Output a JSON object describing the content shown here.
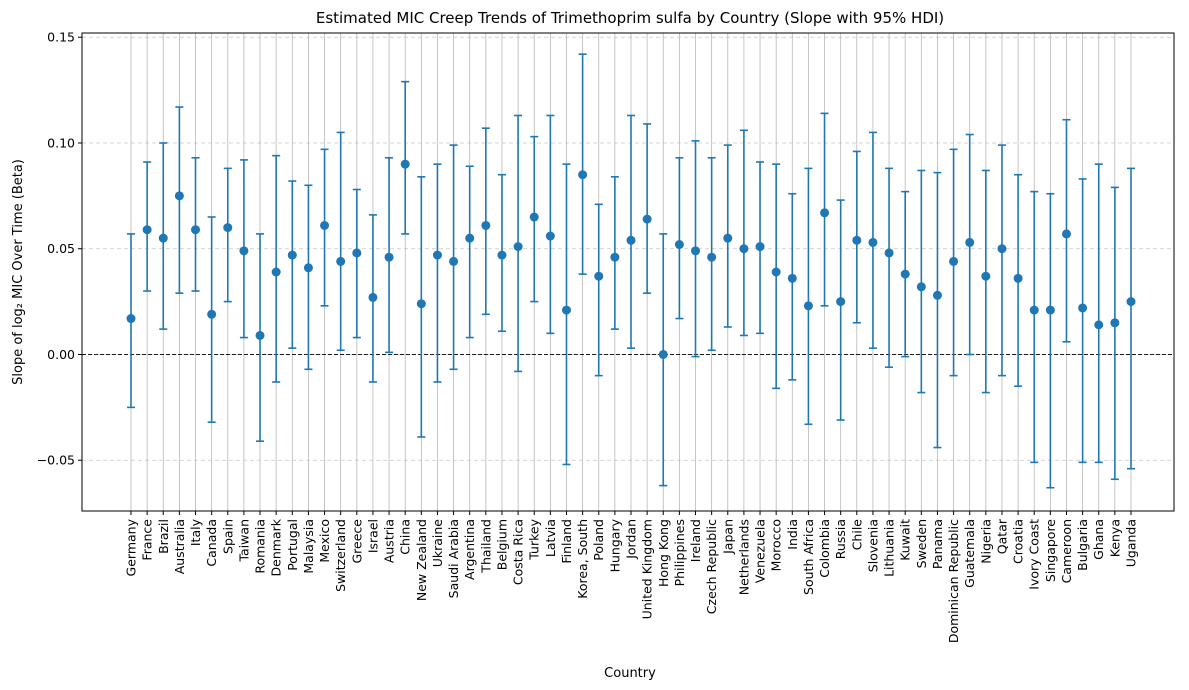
{
  "chart_data": {
    "type": "scatter",
    "title": "Estimated MIC Creep Trends of Trimethoprim sulfa by Country (Slope with 95% HDI)",
    "xlabel": "Country",
    "ylabel": "Slope of log₂ MIC Over Time (Beta)",
    "ylim": [
      -0.074,
      0.152
    ],
    "yticks": [
      -0.05,
      0.0,
      0.05,
      0.1,
      0.15
    ],
    "ytick_labels": [
      "−0.05",
      "0.00",
      "0.05",
      "0.10",
      "0.15"
    ],
    "grid": true,
    "reference_line": 0.0,
    "colors": {
      "series": "#1f77b4",
      "grid": "#b0b0b0",
      "reference": "#000000"
    },
    "points": [
      {
        "x": "Germany",
        "y": 0.017,
        "low": -0.025,
        "high": 0.057
      },
      {
        "x": "France",
        "y": 0.059,
        "low": 0.03,
        "high": 0.091
      },
      {
        "x": "Brazil",
        "y": 0.055,
        "low": 0.012,
        "high": 0.1
      },
      {
        "x": "Australia",
        "y": 0.075,
        "low": 0.029,
        "high": 0.117
      },
      {
        "x": "Italy",
        "y": 0.059,
        "low": 0.03,
        "high": 0.093
      },
      {
        "x": "Canada",
        "y": 0.019,
        "low": -0.032,
        "high": 0.065
      },
      {
        "x": "Spain",
        "y": 0.06,
        "low": 0.025,
        "high": 0.088
      },
      {
        "x": "Taiwan",
        "y": 0.049,
        "low": 0.008,
        "high": 0.092
      },
      {
        "x": "Romania",
        "y": 0.009,
        "low": -0.041,
        "high": 0.057
      },
      {
        "x": "Denmark",
        "y": 0.039,
        "low": -0.013,
        "high": 0.094
      },
      {
        "x": "Portugal",
        "y": 0.047,
        "low": 0.003,
        "high": 0.082
      },
      {
        "x": "Malaysia",
        "y": 0.041,
        "low": -0.007,
        "high": 0.08
      },
      {
        "x": "Mexico",
        "y": 0.061,
        "low": 0.023,
        "high": 0.097
      },
      {
        "x": "Switzerland",
        "y": 0.044,
        "low": 0.002,
        "high": 0.105
      },
      {
        "x": "Greece",
        "y": 0.048,
        "low": 0.008,
        "high": 0.078
      },
      {
        "x": "Israel",
        "y": 0.027,
        "low": -0.013,
        "high": 0.066
      },
      {
        "x": "Austria",
        "y": 0.046,
        "low": 0.001,
        "high": 0.093
      },
      {
        "x": "China",
        "y": 0.09,
        "low": 0.057,
        "high": 0.129
      },
      {
        "x": "New Zealand",
        "y": 0.024,
        "low": -0.039,
        "high": 0.084
      },
      {
        "x": "Ukraine",
        "y": 0.047,
        "low": -0.013,
        "high": 0.09
      },
      {
        "x": "Saudi Arabia",
        "y": 0.044,
        "low": -0.007,
        "high": 0.099
      },
      {
        "x": "Argentina",
        "y": 0.055,
        "low": 0.008,
        "high": 0.089
      },
      {
        "x": "Thailand",
        "y": 0.061,
        "low": 0.019,
        "high": 0.107
      },
      {
        "x": "Belgium",
        "y": 0.047,
        "low": 0.011,
        "high": 0.085
      },
      {
        "x": "Costa Rica",
        "y": 0.051,
        "low": -0.008,
        "high": 0.113
      },
      {
        "x": "Turkey",
        "y": 0.065,
        "low": 0.025,
        "high": 0.103
      },
      {
        "x": "Latvia",
        "y": 0.056,
        "low": 0.01,
        "high": 0.113
      },
      {
        "x": "Finland",
        "y": 0.021,
        "low": -0.052,
        "high": 0.09
      },
      {
        "x": "Korea, South",
        "y": 0.085,
        "low": 0.038,
        "high": 0.142
      },
      {
        "x": "Poland",
        "y": 0.037,
        "low": -0.01,
        "high": 0.071
      },
      {
        "x": "Hungary",
        "y": 0.046,
        "low": 0.012,
        "high": 0.084
      },
      {
        "x": "Jordan",
        "y": 0.054,
        "low": 0.003,
        "high": 0.113
      },
      {
        "x": "United Kingdom",
        "y": 0.064,
        "low": 0.029,
        "high": 0.109
      },
      {
        "x": "Hong Kong",
        "y": 0.0,
        "low": -0.062,
        "high": 0.057
      },
      {
        "x": "Philippines",
        "y": 0.052,
        "low": 0.017,
        "high": 0.093
      },
      {
        "x": "Ireland",
        "y": 0.049,
        "low": -0.001,
        "high": 0.101
      },
      {
        "x": "Czech Republic",
        "y": 0.046,
        "low": 0.002,
        "high": 0.093
      },
      {
        "x": "Japan",
        "y": 0.055,
        "low": 0.013,
        "high": 0.099
      },
      {
        "x": "Netherlands",
        "y": 0.05,
        "low": 0.009,
        "high": 0.106
      },
      {
        "x": "Venezuela",
        "y": 0.051,
        "low": 0.01,
        "high": 0.091
      },
      {
        "x": "Morocco",
        "y": 0.039,
        "low": -0.016,
        "high": 0.09
      },
      {
        "x": "India",
        "y": 0.036,
        "low": -0.012,
        "high": 0.076
      },
      {
        "x": "South Africa",
        "y": 0.023,
        "low": -0.033,
        "high": 0.088
      },
      {
        "x": "Colombia",
        "y": 0.067,
        "low": 0.023,
        "high": 0.114
      },
      {
        "x": "Russia",
        "y": 0.025,
        "low": -0.031,
        "high": 0.073
      },
      {
        "x": "Chile",
        "y": 0.054,
        "low": 0.015,
        "high": 0.096
      },
      {
        "x": "Slovenia",
        "y": 0.053,
        "low": 0.003,
        "high": 0.105
      },
      {
        "x": "Lithuania",
        "y": 0.048,
        "low": -0.006,
        "high": 0.088
      },
      {
        "x": "Kuwait",
        "y": 0.038,
        "low": -0.001,
        "high": 0.077
      },
      {
        "x": "Sweden",
        "y": 0.032,
        "low": -0.018,
        "high": 0.087
      },
      {
        "x": "Panama",
        "y": 0.028,
        "low": -0.044,
        "high": 0.086
      },
      {
        "x": "Dominican Republic",
        "y": 0.044,
        "low": -0.01,
        "high": 0.097
      },
      {
        "x": "Guatemala",
        "y": 0.053,
        "low": 0.0,
        "high": 0.104
      },
      {
        "x": "Nigeria",
        "y": 0.037,
        "low": -0.018,
        "high": 0.087
      },
      {
        "x": "Qatar",
        "y": 0.05,
        "low": -0.01,
        "high": 0.099
      },
      {
        "x": "Croatia",
        "y": 0.036,
        "low": -0.015,
        "high": 0.085
      },
      {
        "x": "Ivory Coast",
        "y": 0.021,
        "low": -0.051,
        "high": 0.077
      },
      {
        "x": "Singapore",
        "y": 0.021,
        "low": -0.063,
        "high": 0.076
      },
      {
        "x": "Cameroon",
        "y": 0.057,
        "low": 0.006,
        "high": 0.111
      },
      {
        "x": "Bulgaria",
        "y": 0.022,
        "low": -0.051,
        "high": 0.083
      },
      {
        "x": "Ghana",
        "y": 0.014,
        "low": -0.051,
        "high": 0.09
      },
      {
        "x": "Kenya",
        "y": 0.015,
        "low": -0.059,
        "high": 0.079
      },
      {
        "x": "Uganda",
        "y": 0.025,
        "low": -0.054,
        "high": 0.088
      }
    ]
  }
}
